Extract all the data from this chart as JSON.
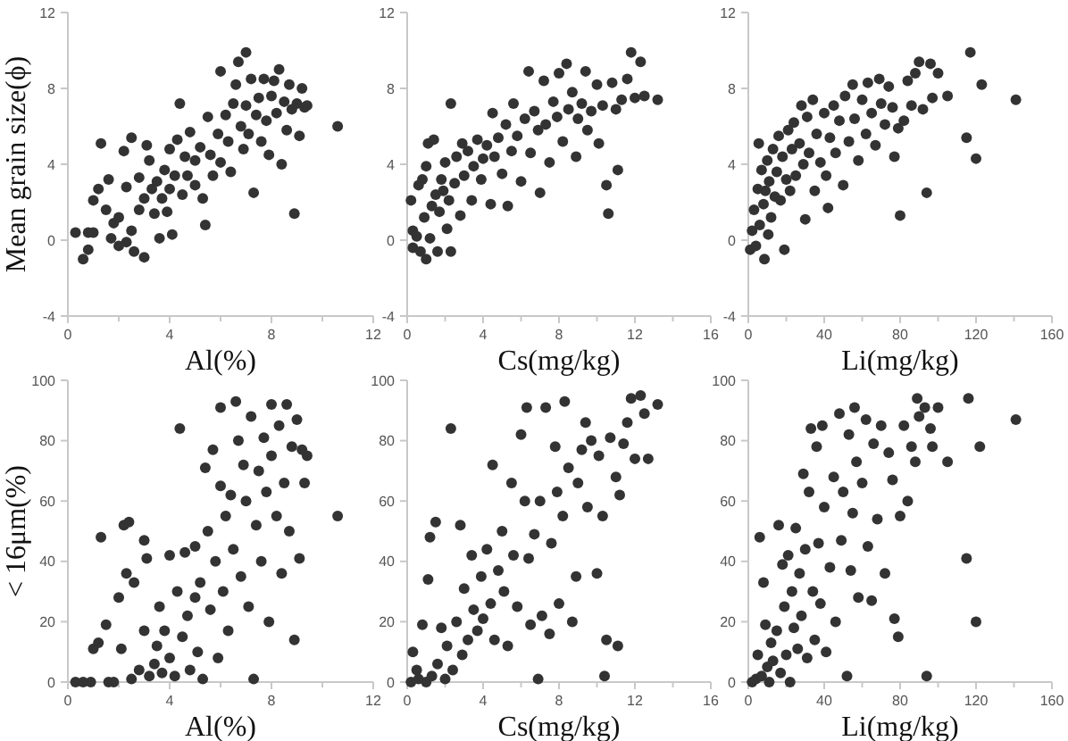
{
  "chart_data": [
    {
      "type": "scatter",
      "xlabel": "Al(%)",
      "ylabel": "Mean grain size(ϕ)",
      "color": "#333333",
      "marker": "circle",
      "xlim": [
        0,
        12
      ],
      "ylim": [
        -4,
        12
      ],
      "xticks": [
        0,
        {
          "value": 2,
          "label": null
        },
        4,
        {
          "value": 6,
          "label": null
        },
        8,
        {
          "value": 10,
          "label": null
        },
        12
      ],
      "yticks": [
        -4,
        0,
        4,
        8,
        12
      ],
      "x": [
        0.3,
        0.6,
        0.8,
        0.8,
        1,
        1,
        1.3,
        1.2,
        1.5,
        1.6,
        1.8,
        1.7,
        2,
        2,
        2.2,
        2.3,
        2.3,
        2.5,
        2.5,
        2.6,
        2.8,
        2.8,
        3,
        3,
        3.1,
        3.2,
        3.3,
        3.4,
        3.5,
        3.6,
        3.7,
        3.8,
        3.9,
        4,
        4,
        4.1,
        4.2,
        4.3,
        4.4,
        4.5,
        4.6,
        4.7,
        4.8,
        5,
        5,
        5.2,
        5.3,
        5.4,
        5.5,
        5.6,
        5.7,
        5.9,
        6,
        6,
        6.2,
        6.3,
        6.4,
        6.5,
        6.6,
        6.7,
        6.8,
        6.9,
        7,
        7,
        7.1,
        7.2,
        7.3,
        7.4,
        7.5,
        7.6,
        7.7,
        7.8,
        7.9,
        8,
        8.1,
        8.2,
        8.3,
        8.4,
        8.5,
        8.6,
        8.7,
        8.8,
        8.9,
        9,
        9.1,
        9.2,
        9.3,
        9.4,
        10.6
      ],
      "values": [
        0.4,
        -1,
        0.4,
        -0.5,
        2.1,
        0.4,
        5.1,
        2.7,
        1.6,
        3.2,
        0.9,
        0.1,
        -0.3,
        1.2,
        4.7,
        2.8,
        -0.1,
        5.4,
        0.5,
        -0.6,
        3.3,
        1.6,
        2.2,
        -0.9,
        5,
        4.2,
        2.7,
        1.4,
        3.1,
        0.1,
        2.2,
        3.7,
        1.5,
        4.8,
        2.7,
        0.3,
        3.4,
        5.3,
        7.2,
        2.4,
        4.4,
        3.4,
        5.7,
        4.2,
        2.9,
        4.9,
        2.2,
        0.8,
        6.5,
        4.5,
        3.4,
        5.6,
        8.9,
        4.1,
        6.6,
        5.2,
        3.6,
        7.2,
        8.2,
        9.4,
        6,
        4.8,
        9.9,
        7.1,
        5.6,
        8.5,
        2.5,
        6.6,
        7.5,
        5.2,
        8.5,
        6.3,
        4.5,
        7.6,
        8.4,
        6.7,
        9,
        4,
        7.3,
        5.8,
        8.2,
        6.9,
        1.4,
        7.2,
        5.5,
        8,
        7,
        7.1,
        6
      ]
    },
    {
      "type": "scatter",
      "xlabel": "Cs(mg/kg)",
      "color": "#333333",
      "marker": "circle",
      "xlim": [
        0,
        16
      ],
      "ylim": [
        -4,
        12
      ],
      "xticks": [
        0,
        {
          "value": 2,
          "label": null
        },
        4,
        {
          "value": 6,
          "label": null
        },
        8,
        {
          "value": 10,
          "label": null
        },
        12,
        {
          "value": 14,
          "label": null
        },
        16
      ],
      "yticks": [
        -4,
        0,
        4,
        8,
        12
      ],
      "x": [
        0.2,
        0.3,
        0.3,
        0.5,
        0.6,
        0.7,
        0.8,
        0.9,
        1,
        1,
        1.1,
        1.2,
        1.3,
        1.4,
        1.5,
        1.6,
        1.7,
        1.8,
        1.9,
        2,
        2.1,
        2.2,
        2.3,
        2.3,
        2.5,
        2.6,
        2.8,
        2.9,
        3,
        3.2,
        3.4,
        3.5,
        3.7,
        3.9,
        4,
        4.2,
        4.4,
        4.5,
        4.6,
        4.8,
        5,
        5.2,
        5.3,
        5.5,
        5.6,
        5.8,
        6,
        6.2,
        6.4,
        6.5,
        6.7,
        6.9,
        7,
        7.2,
        7.3,
        7.5,
        7.7,
        7.9,
        8,
        8.2,
        8.4,
        8.5,
        8.7,
        8.9,
        9,
        9.2,
        9.4,
        9.5,
        9.7,
        10,
        10.1,
        10.3,
        10.5,
        10.6,
        10.8,
        11,
        11.1,
        11.3,
        11.6,
        11.8,
        12,
        12.3,
        12.5,
        13.2
      ],
      "values": [
        2.1,
        0.5,
        -0.4,
        0.2,
        2.9,
        -0.6,
        3.2,
        1.2,
        -1,
        3.9,
        5.1,
        0.1,
        1.8,
        5.3,
        2.4,
        -0.6,
        1.5,
        3.2,
        2.6,
        4.1,
        0.6,
        2.1,
        7.2,
        -0.6,
        3,
        4.4,
        1.3,
        5.1,
        3.4,
        4.7,
        2.1,
        3.9,
        5.3,
        3.2,
        4.3,
        5,
        1.9,
        6.7,
        4.4,
        5.4,
        3.5,
        6.1,
        1.8,
        4.7,
        7.2,
        5.5,
        3.1,
        6.4,
        8.9,
        4.6,
        6.8,
        5.8,
        2.5,
        8.4,
        6.1,
        4.1,
        7.3,
        6.5,
        8.8,
        5.2,
        9.3,
        6.9,
        7.8,
        4.4,
        6.4,
        7.2,
        8.9,
        5.8,
        6.8,
        8.2,
        5.1,
        7.1,
        2.9,
        1.4,
        8.3,
        6.9,
        3.7,
        7.4,
        8.5,
        9.9,
        7.5,
        9.4,
        7.6,
        7.4
      ]
    },
    {
      "type": "scatter",
      "xlabel": "Li(mg/kg)",
      "color": "#333333",
      "marker": "circle",
      "xlim": [
        0,
        160
      ],
      "ylim": [
        -4,
        12
      ],
      "xticks": [
        0,
        {
          "value": 20,
          "label": null
        },
        40,
        {
          "value": 60,
          "label": null
        },
        80,
        {
          "value": 100,
          "label": null
        },
        120,
        {
          "value": 140,
          "label": null
        },
        160
      ],
      "yticks": [
        -4,
        0,
        4,
        8,
        12
      ],
      "x": [
        1,
        2,
        3,
        4,
        5,
        5.5,
        6,
        7,
        8,
        8.5,
        9,
        10,
        10.5,
        11,
        12,
        13,
        14,
        15,
        16,
        17,
        18,
        19,
        20,
        21,
        22,
        23,
        24,
        25,
        27,
        28,
        29,
        30,
        31,
        32,
        34,
        35,
        36,
        38,
        40,
        41,
        42,
        43,
        45,
        46,
        48,
        50,
        51,
        53,
        55,
        56,
        58,
        60,
        62,
        63,
        65,
        67,
        69,
        70,
        72,
        74,
        76,
        77,
        79,
        80,
        82,
        84,
        86,
        88,
        90,
        92,
        94,
        96,
        97,
        100,
        105,
        115,
        117,
        120,
        123,
        141
      ],
      "values": [
        -0.5,
        0.5,
        1.6,
        -0.3,
        2.7,
        5.1,
        0.8,
        3.7,
        1.9,
        -1,
        2.6,
        4.2,
        0.3,
        3.1,
        1.2,
        4.8,
        2.3,
        3.6,
        5.5,
        2.1,
        4.4,
        -0.5,
        3.2,
        5.8,
        2.6,
        4.8,
        6.2,
        3.4,
        5.1,
        7.1,
        4,
        1.1,
        6.5,
        4.6,
        7.4,
        2.6,
        5.6,
        4.1,
        6.7,
        3.4,
        1.7,
        5.4,
        7.1,
        4.6,
        6.3,
        2.9,
        7.6,
        5.2,
        8.2,
        6.4,
        4.2,
        7.4,
        5.6,
        8.3,
        6.7,
        5,
        8.5,
        7.2,
        6.1,
        8.1,
        7,
        4.4,
        5.9,
        1.3,
        6.3,
        8.4,
        7.1,
        8.8,
        9.4,
        6.9,
        2.5,
        9.3,
        7.5,
        8.8,
        7.6,
        5.4,
        9.9,
        4.3,
        8.2,
        7.4
      ]
    },
    {
      "type": "scatter",
      "xlabel": "Al(%)",
      "ylabel": "< 16μm(%)",
      "color": "#333333",
      "marker": "circle",
      "xlim": [
        0,
        12
      ],
      "ylim": [
        0,
        100
      ],
      "xticks": [
        0,
        {
          "value": 2,
          "label": null
        },
        4,
        {
          "value": 6,
          "label": null
        },
        8,
        {
          "value": 10,
          "label": null
        },
        12
      ],
      "yticks": [
        0,
        20,
        40,
        60,
        80,
        100
      ],
      "x": [
        0.3,
        0.6,
        0.9,
        1,
        1.2,
        1.3,
        1.5,
        1.6,
        1.8,
        2,
        2.1,
        2.2,
        2.3,
        2.4,
        2.5,
        2.6,
        2.8,
        3,
        3,
        3.1,
        3.2,
        3.4,
        3.5,
        3.6,
        3.7,
        3.8,
        4,
        4,
        4.2,
        4.3,
        4.4,
        4.5,
        4.6,
        4.7,
        4.8,
        5,
        5,
        5.1,
        5.2,
        5.3,
        5.4,
        5.5,
        5.6,
        5.7,
        5.8,
        5.9,
        6,
        6,
        6.1,
        6.2,
        6.3,
        6.4,
        6.5,
        6.6,
        6.7,
        6.8,
        6.9,
        7,
        7.1,
        7.2,
        7.3,
        7.4,
        7.5,
        7.6,
        7.7,
        7.8,
        7.9,
        8,
        8,
        8.2,
        8.3,
        8.4,
        8.5,
        8.6,
        8.7,
        8.8,
        8.9,
        9,
        9.1,
        9.2,
        9.3,
        9.4,
        10.6
      ],
      "values": [
        0,
        0,
        0,
        11,
        13,
        48,
        19,
        0,
        0,
        28,
        11,
        52,
        36,
        53,
        1,
        33,
        4,
        17,
        47,
        41,
        2,
        6,
        12,
        25,
        3,
        17,
        42,
        8,
        2,
        30,
        84,
        15,
        43,
        22,
        4,
        28,
        45,
        10,
        33,
        1,
        71,
        50,
        24,
        77,
        40,
        8,
        65,
        91,
        30,
        55,
        17,
        62,
        44,
        93,
        80,
        35,
        72,
        60,
        25,
        88,
        1,
        52,
        70,
        40,
        81,
        63,
        20,
        92,
        75,
        55,
        85,
        36,
        66,
        92,
        50,
        78,
        14,
        87,
        41,
        77,
        66,
        75,
        55
      ]
    },
    {
      "type": "scatter",
      "xlabel": "Cs(mg/kg)",
      "color": "#333333",
      "marker": "circle",
      "xlim": [
        0,
        16
      ],
      "ylim": [
        0,
        100
      ],
      "xticks": [
        0,
        {
          "value": 2,
          "label": null
        },
        4,
        {
          "value": 6,
          "label": null
        },
        8,
        {
          "value": 10,
          "label": null
        },
        12,
        {
          "value": 14,
          "label": null
        },
        16
      ],
      "yticks": [
        0,
        20,
        40,
        60,
        80,
        100
      ],
      "x": [
        0.2,
        0.3,
        0.5,
        0.6,
        0.8,
        1,
        1.1,
        1.2,
        1.3,
        1.5,
        1.6,
        1.8,
        2,
        2.1,
        2.3,
        2.4,
        2.6,
        2.8,
        2.9,
        3,
        3.2,
        3.4,
        3.5,
        3.7,
        3.9,
        4,
        4.2,
        4.4,
        4.5,
        4.6,
        4.8,
        5,
        5.1,
        5.3,
        5.5,
        5.6,
        5.8,
        6,
        6.2,
        6.3,
        6.4,
        6.5,
        6.7,
        6.9,
        7,
        7.1,
        7.3,
        7.5,
        7.6,
        7.8,
        7.9,
        8,
        8.2,
        8.3,
        8.5,
        8.7,
        8.9,
        9,
        9.2,
        9.4,
        9.5,
        9.7,
        10,
        10.1,
        10.3,
        10.4,
        10.5,
        10.7,
        11,
        11.1,
        11.2,
        11.4,
        11.6,
        11.8,
        12,
        12.3,
        12.5,
        12.7,
        13.2
      ],
      "values": [
        0,
        10,
        4,
        1,
        19,
        0,
        34,
        48,
        2,
        53,
        6,
        18,
        1,
        12,
        84,
        4,
        20,
        52,
        9,
        31,
        14,
        42,
        24,
        17,
        35,
        21,
        44,
        26,
        72,
        14,
        37,
        50,
        30,
        12,
        66,
        42,
        25,
        82,
        60,
        91,
        41,
        19,
        49,
        1,
        60,
        22,
        91,
        16,
        46,
        78,
        63,
        26,
        55,
        93,
        71,
        20,
        35,
        66,
        77,
        86,
        58,
        80,
        36,
        75,
        55,
        2,
        14,
        81,
        68,
        12,
        62,
        79,
        86,
        94,
        74,
        95,
        89,
        74,
        92
      ]
    },
    {
      "type": "scatter",
      "xlabel": "Li(mg/kg)",
      "color": "#333333",
      "marker": "circle",
      "xlim": [
        0,
        160
      ],
      "ylim": [
        0,
        100
      ],
      "xticks": [
        0,
        {
          "value": 20,
          "label": null
        },
        40,
        {
          "value": 60,
          "label": null
        },
        80,
        {
          "value": 100,
          "label": null
        },
        120,
        {
          "value": 140,
          "label": null
        },
        160
      ],
      "yticks": [
        0,
        20,
        40,
        60,
        80,
        100
      ],
      "x": [
        2,
        4,
        5,
        6,
        7,
        8,
        9,
        10,
        11,
        12,
        13,
        15,
        16,
        17,
        18,
        19,
        20,
        21,
        22,
        23,
        24,
        25,
        26,
        27,
        28,
        29,
        30,
        31,
        32,
        33,
        34,
        35,
        36,
        37,
        38,
        39,
        40,
        41,
        43,
        45,
        46,
        48,
        49,
        50,
        52,
        53,
        54,
        55,
        56,
        57,
        58,
        60,
        62,
        63,
        65,
        66,
        68,
        70,
        72,
        74,
        76,
        77,
        79,
        80,
        82,
        84,
        86,
        88,
        89,
        90,
        93,
        94,
        96,
        97,
        100,
        105,
        115,
        116,
        120,
        122,
        141
      ],
      "values": [
        0,
        1,
        9,
        48,
        2,
        33,
        19,
        5,
        0,
        13,
        7,
        17,
        52,
        3,
        39,
        25,
        9,
        42,
        0,
        30,
        18,
        51,
        11,
        36,
        22,
        69,
        44,
        8,
        63,
        84,
        30,
        14,
        78,
        46,
        26,
        85,
        58,
        10,
        38,
        68,
        20,
        89,
        47,
        63,
        2,
        82,
        37,
        56,
        91,
        73,
        28,
        66,
        87,
        45,
        27,
        79,
        54,
        85,
        36,
        76,
        67,
        21,
        15,
        55,
        85,
        60,
        78,
        73,
        94,
        88,
        91,
        2,
        84,
        78,
        91,
        73,
        41,
        94,
        20,
        78,
        87
      ]
    }
  ]
}
